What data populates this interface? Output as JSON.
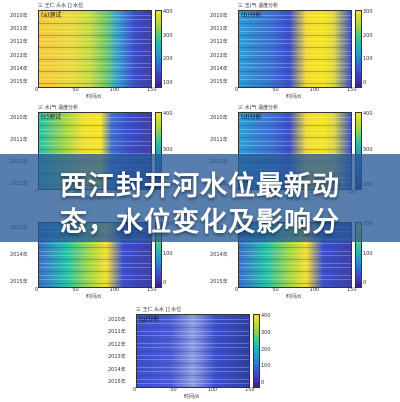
{
  "banner": {
    "line1": "西江封开河水位最新动",
    "line2": "态，水位变化及影响分"
  },
  "panels": [
    {
      "header": "三 王仁 头水 [] 水位",
      "tag": "(a)",
      "tag2": "测试",
      "years": [
        "2010年",
        "2011年",
        "2012年",
        "2013年",
        "2014年",
        "2015年"
      ],
      "xlabel": "时间/d",
      "xticks": [
        "0",
        "50",
        "100",
        "150"
      ],
      "cbar": [
        "400",
        "300",
        "200",
        "100"
      ]
    },
    {
      "header": "三 玉(气 温度分析",
      "tag": "(b)",
      "tag2": "分析",
      "years": [
        "2010年",
        "2011年",
        "2012年",
        "2013年",
        "2014年",
        "2015年"
      ],
      "xlabel": "时间/d",
      "xticks": [
        "0",
        "50",
        "100",
        "150"
      ],
      "cbar": [
        "300",
        "200",
        "100",
        "0"
      ]
    },
    {
      "header": "三 水(气 温度分析",
      "tag": "(c)",
      "tag2": "测试",
      "years": [
        "2010年",
        "2011年",
        "2012年",
        "2013年"
      ],
      "xlabel": "时间/d",
      "xticks": [
        "0",
        "50",
        "100",
        "150"
      ],
      "cbar": [
        "400",
        "300",
        "200"
      ]
    },
    {
      "header": "三 水(气 温度分析",
      "tag": "(d)",
      "tag2": "分析",
      "years": [
        "2010年",
        "2011年",
        "2012年",
        "2013年"
      ],
      "xlabel": "时间/d",
      "xticks": [
        "0",
        "50",
        "100",
        "150"
      ],
      "cbar": [
        "400",
        "300",
        "200"
      ]
    },
    {
      "header": "",
      "tag": "",
      "tag2": "",
      "years": [
        "2013年",
        "2014年",
        "2015年"
      ],
      "xlabel": "时间/d",
      "xticks": [
        "0",
        "50",
        "100",
        "150"
      ],
      "cbar": [
        "200",
        "100",
        "0"
      ]
    },
    {
      "header": "",
      "tag": "",
      "tag2": "",
      "years": [
        "2013年",
        "2014年",
        "2015年"
      ],
      "xlabel": "时间/d",
      "xticks": [
        "0",
        "50",
        "100",
        "150"
      ],
      "cbar": [
        "200",
        "100",
        "0"
      ]
    },
    {
      "header": "三 王仁 头水 [] 水位",
      "tag": "(g)",
      "tag2": "分析",
      "years": [
        "2010年",
        "2011年",
        "2012年",
        "2013年",
        "2014年",
        "2015年"
      ],
      "xlabel": "时间/d",
      "xticks": [
        "0",
        "50",
        "100",
        "150"
      ],
      "cbar": [
        "400",
        "300",
        "200",
        "100",
        "0"
      ]
    }
  ],
  "colors": {
    "banner_bg": "#285a96",
    "yellow": "#f3e22c",
    "blue": "#3b4fc9",
    "teal": "#2bbfa5"
  }
}
